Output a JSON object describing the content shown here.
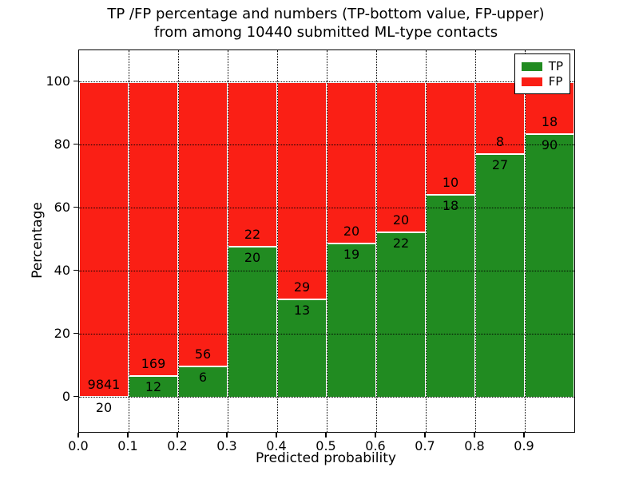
{
  "figure": {
    "title_line1": "TP /FP percentage and numbers (TP-bottom value, FP-upper)",
    "title_line2": "from among 10440 submitted ML-type contacts"
  },
  "legend": {
    "items": [
      {
        "label": "TP",
        "color": "#218b21"
      },
      {
        "label": "FP",
        "color": "#fa1f15"
      }
    ]
  },
  "chart_data": {
    "type": "bar",
    "stacked": true,
    "normalized_to_percent": true,
    "title": "TP /FP percentage and numbers (TP-bottom value, FP-upper) from among 10440 submitted ML-type contacts",
    "xlabel": "Predicted probability",
    "ylabel": "Percentage",
    "x_tick_labels": [
      "0.0",
      "0.1",
      "0.2",
      "0.3",
      "0.4",
      "0.5",
      "0.6",
      "0.7",
      "0.8",
      "0.9"
    ],
    "y_ticks": [
      0,
      20,
      40,
      60,
      80,
      100
    ],
    "y_tick_labels": [
      "0",
      "20",
      "40",
      "60",
      "80",
      "100"
    ],
    "xlim": [
      0.0,
      1.0
    ],
    "ylim": [
      -11,
      110
    ],
    "grid": true,
    "grid_linestyle": "dotted",
    "grid_color": "#000000",
    "legend_position": "upper right",
    "bin_width": 0.1,
    "bin_starts": [
      0.0,
      0.1,
      0.2,
      0.3,
      0.4,
      0.5,
      0.6,
      0.7,
      0.8,
      0.9
    ],
    "series": [
      {
        "name": "TP",
        "color": "#218b21",
        "counts": [
          20,
          12,
          6,
          20,
          13,
          19,
          22,
          18,
          27,
          90
        ]
      },
      {
        "name": "FP",
        "color": "#fa1f15",
        "counts": [
          9841,
          169,
          56,
          22,
          29,
          20,
          20,
          10,
          8,
          18
        ]
      }
    ],
    "tp_percent_of_bin": [
      0.2,
      6.6,
      9.7,
      47.6,
      31.0,
      48.7,
      52.4,
      64.3,
      77.1,
      83.3
    ],
    "total_contacts": 10440
  }
}
